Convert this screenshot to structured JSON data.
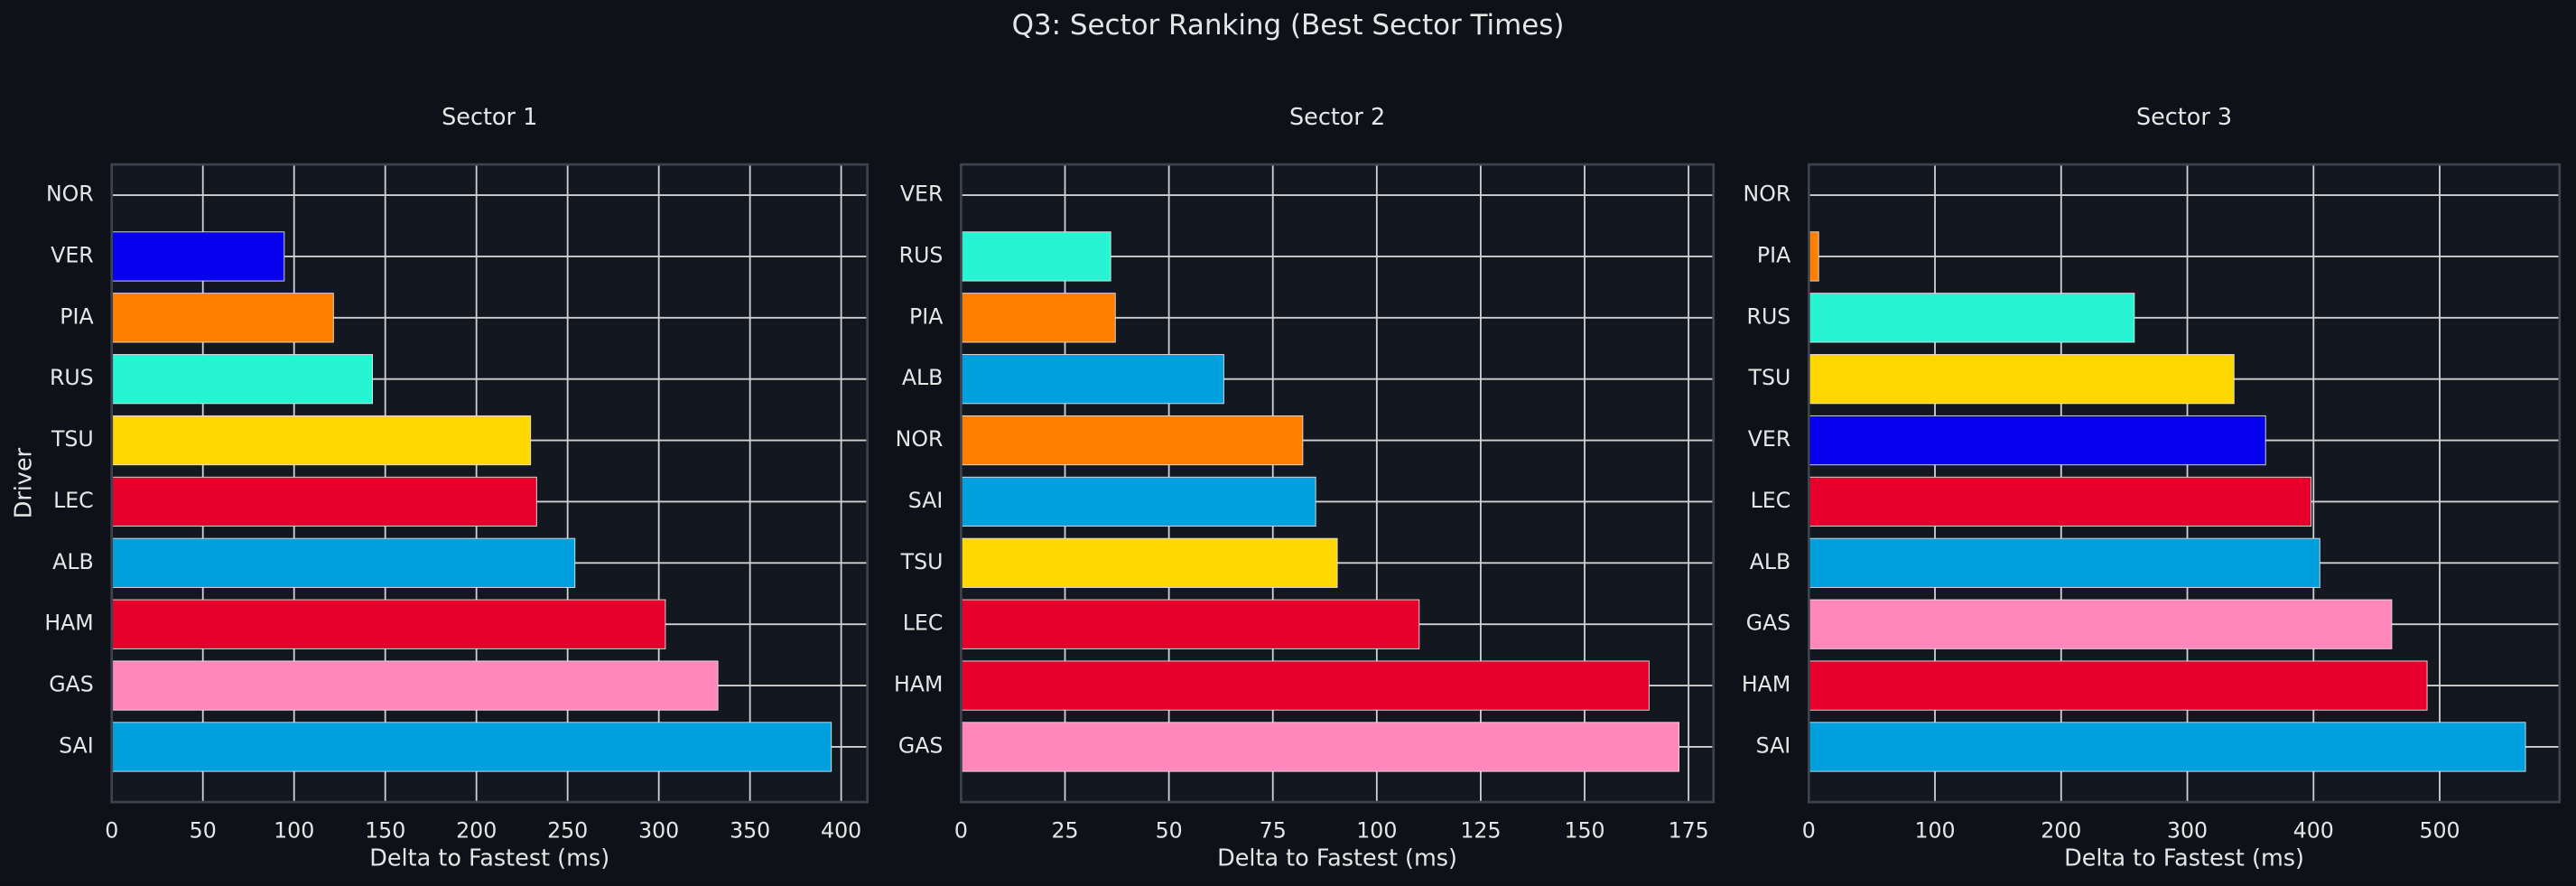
{
  "title": "Q3: Sector Ranking (Best Sector Times)",
  "chart_data": [
    {
      "type": "barh",
      "title": "Sector 1",
      "xlabel": "Delta to Fastest (ms)",
      "ylabel": "Driver",
      "categories": [
        "NOR",
        "VER",
        "PIA",
        "RUS",
        "TSU",
        "LEC",
        "ALB",
        "HAM",
        "GAS",
        "SAI"
      ],
      "values": [
        0,
        94.6,
        121.6,
        143,
        229.7,
        233,
        254,
        303.6,
        332.4,
        394.6
      ],
      "colors": [
        "#FF8000",
        "#0600EF",
        "#FF8000",
        "#27F4D2",
        "#FFD700",
        "#E8002D",
        "#00A0DE",
        "#E8002D",
        "#FF87BC",
        "#00A0DE"
      ],
      "xlim": [
        0,
        414.4
      ],
      "xticks": [
        0,
        50,
        100,
        150,
        200,
        250,
        300,
        350,
        400
      ],
      "grid": true
    },
    {
      "type": "barh",
      "title": "Sector 2",
      "xlabel": "Delta to Fastest (ms)",
      "categories": [
        "VER",
        "RUS",
        "PIA",
        "ALB",
        "NOR",
        "SAI",
        "TSU",
        "LEC",
        "HAM",
        "GAS"
      ],
      "values": [
        0,
        36,
        37.1,
        63.2,
        82.2,
        85.3,
        90.5,
        110.2,
        165.5,
        172.7
      ],
      "colors": [
        "#0600EF",
        "#27F4D2",
        "#FF8000",
        "#00A0DE",
        "#FF8000",
        "#00A0DE",
        "#FFD700",
        "#E8002D",
        "#E8002D",
        "#FF87BC"
      ],
      "xlim": [
        0,
        181
      ],
      "xticks": [
        0,
        25,
        50,
        75,
        100,
        125,
        150,
        175
      ],
      "grid": true
    },
    {
      "type": "barh",
      "title": "Sector 3",
      "xlabel": "Delta to Fastest (ms)",
      "categories": [
        "NOR",
        "PIA",
        "RUS",
        "TSU",
        "VER",
        "LEC",
        "ALB",
        "GAS",
        "HAM",
        "SAI"
      ],
      "values": [
        0,
        7.8,
        258,
        337,
        362,
        398,
        405,
        462,
        490,
        568
      ],
      "colors": [
        "#FF8000",
        "#FF8000",
        "#27F4D2",
        "#FFD700",
        "#0600EF",
        "#E8002D",
        "#00A0DE",
        "#FF87BC",
        "#E8002D",
        "#00A0DE"
      ],
      "xlim": [
        0,
        595
      ],
      "xticks": [
        0,
        100,
        200,
        300,
        400,
        500
      ],
      "grid": true
    }
  ]
}
